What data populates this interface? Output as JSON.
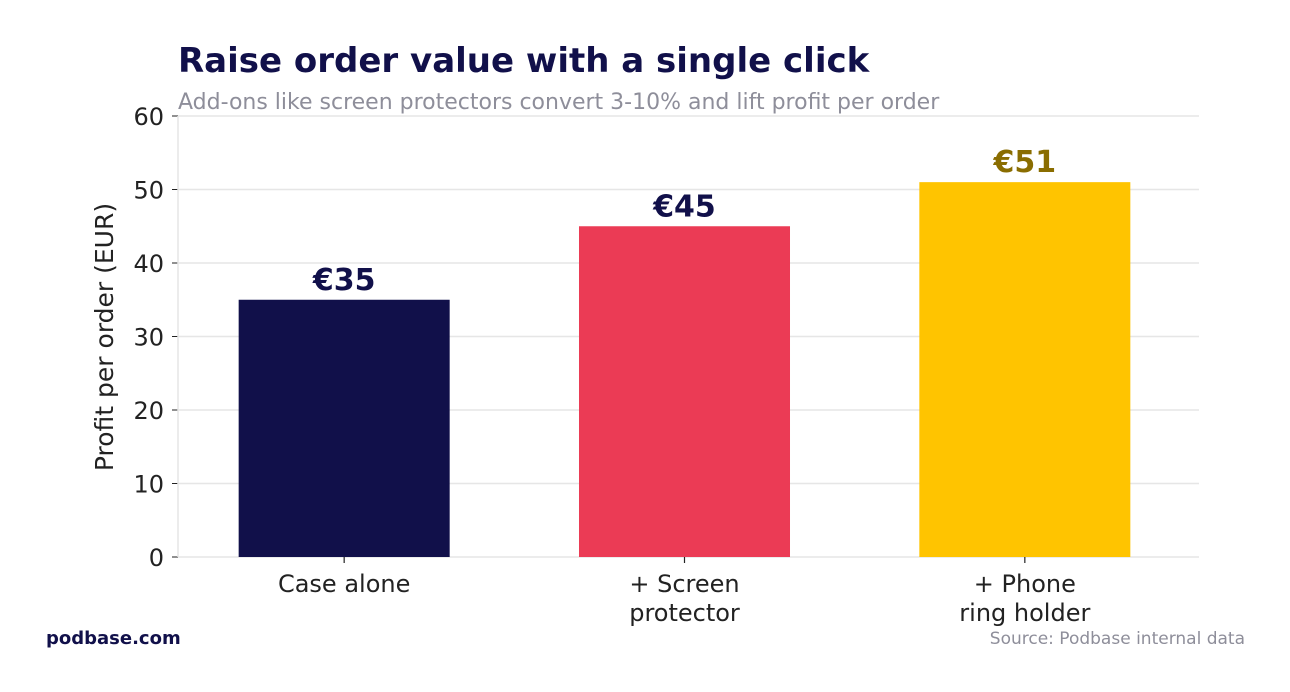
{
  "chart_data": {
    "type": "bar",
    "title": "Raise order value with a single click",
    "subtitle": "Add-ons like screen protectors convert 3-10% and lift profit per order",
    "ylabel": "Profit per order (EUR)",
    "xlabel": "",
    "ylim": [
      0,
      60
    ],
    "yticks": [
      0,
      10,
      20,
      30,
      40,
      50,
      60
    ],
    "grid": true,
    "categories": [
      [
        "Case alone"
      ],
      [
        "+ Screen",
        "protector"
      ],
      [
        "+ Phone",
        "ring holder"
      ]
    ],
    "values": [
      35,
      45,
      51
    ],
    "data_labels": [
      "€35",
      "€45",
      "€51"
    ],
    "bar_colors": [
      "#11104a",
      "#eb3b55",
      "#ffc400"
    ],
    "label_colors": [
      "#11104a",
      "#11104a",
      "#8a6d00"
    ]
  },
  "footer": {
    "brand": "podbase.com",
    "source": "Source: Podbase internal data"
  },
  "colors": {
    "grid": "#e6e6e6",
    "axis": "#222222"
  }
}
